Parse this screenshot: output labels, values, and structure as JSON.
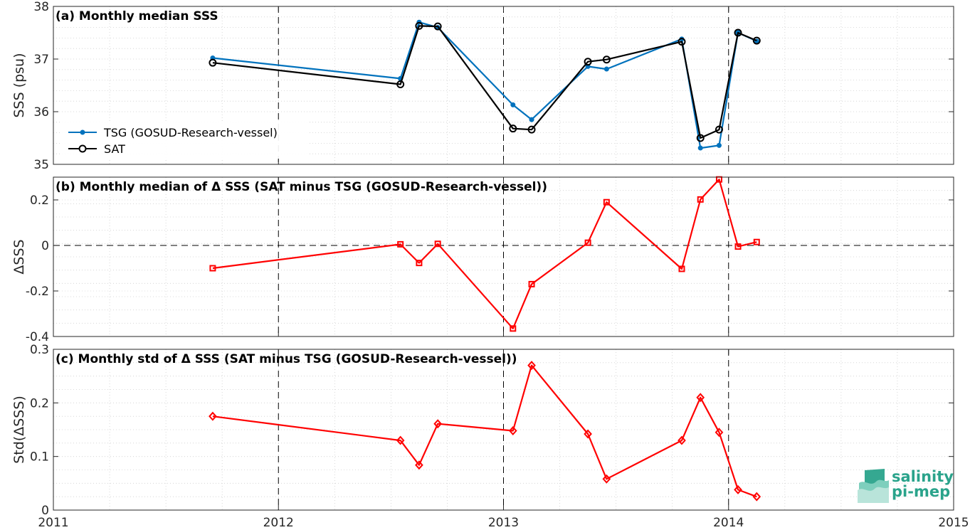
{
  "chart_data": [
    {
      "type": "line",
      "title": "(a) Monthly median SSS",
      "xlabel": "",
      "ylabel": "SSS (psu)",
      "xlim": [
        2011,
        2015
      ],
      "ylim": [
        35,
        38
      ],
      "yticks": [
        "35",
        "36",
        "37",
        "38"
      ],
      "grid": true,
      "legend_placement": "bottom-left",
      "series": [
        {
          "name": "TSG (GOSUD-Research-vessel)",
          "color": "#0072bd",
          "marker": "dot",
          "x": [
            2011.708,
            2012.542,
            2012.625,
            2012.708,
            2013.042,
            2013.125,
            2013.375,
            2013.458,
            2013.792,
            2013.875,
            2013.958,
            2014.042,
            2014.125
          ],
          "y": [
            37.02,
            36.63,
            37.7,
            37.6,
            36.13,
            35.85,
            36.86,
            36.81,
            37.38,
            35.31,
            35.36,
            37.5,
            37.34
          ]
        },
        {
          "name": "SAT",
          "color": "#000000",
          "marker": "circle",
          "x": [
            2011.708,
            2012.542,
            2012.625,
            2012.708,
            2013.042,
            2013.125,
            2013.375,
            2013.458,
            2013.792,
            2013.875,
            2013.958,
            2014.042,
            2014.125
          ],
          "y": [
            36.93,
            36.52,
            37.63,
            37.62,
            35.68,
            35.66,
            36.95,
            36.99,
            37.33,
            35.5,
            35.66,
            37.5,
            37.35
          ]
        }
      ]
    },
    {
      "type": "line",
      "title": "(b) Monthly median of Δ SSS (SAT minus TSG (GOSUD-Research-vessel))",
      "xlabel": "",
      "ylabel": "ΔSSS",
      "xlim": [
        2011,
        2015
      ],
      "ylim": [
        -0.4,
        0.3
      ],
      "yticks": [
        "-0.4",
        "-0.2",
        "0",
        "0.2"
      ],
      "grid": true,
      "series": [
        {
          "color": "#ff0000",
          "marker": "square",
          "x": [
            2011.708,
            2012.542,
            2012.625,
            2012.708,
            2013.042,
            2013.125,
            2013.375,
            2013.458,
            2013.792,
            2013.875,
            2013.958,
            2014.042,
            2014.125
          ],
          "y": [
            -0.1,
            0.005,
            -0.077,
            0.007,
            -0.365,
            -0.17,
            0.012,
            0.19,
            -0.103,
            0.202,
            0.29,
            -0.005,
            0.015
          ]
        }
      ]
    },
    {
      "type": "line",
      "title": "(c) Monthly std of Δ SSS (SAT minus TSG (GOSUD-Research-vessel))",
      "xlabel": "",
      "ylabel": "Std(ΔSSS)",
      "xlim": [
        2011,
        2015
      ],
      "ylim": [
        0,
        0.3
      ],
      "yticks": [
        "0",
        "0.1",
        "0.2",
        "0.3"
      ],
      "xticks": [
        "2011",
        "2012",
        "2013",
        "2014",
        "2015"
      ],
      "grid": true,
      "series": [
        {
          "color": "#ff0000",
          "marker": "diamond",
          "x": [
            2011.708,
            2012.542,
            2012.625,
            2012.708,
            2013.042,
            2013.125,
            2013.375,
            2013.458,
            2013.792,
            2013.875,
            2013.958,
            2014.042,
            2014.125
          ],
          "y": [
            0.175,
            0.13,
            0.084,
            0.161,
            0.148,
            0.27,
            0.142,
            0.058,
            0.13,
            0.21,
            0.145,
            0.038,
            0.025
          ]
        }
      ]
    }
  ],
  "logo": {
    "line1": "salinity",
    "line2": "pi-mep",
    "color": "#2aa38b"
  }
}
